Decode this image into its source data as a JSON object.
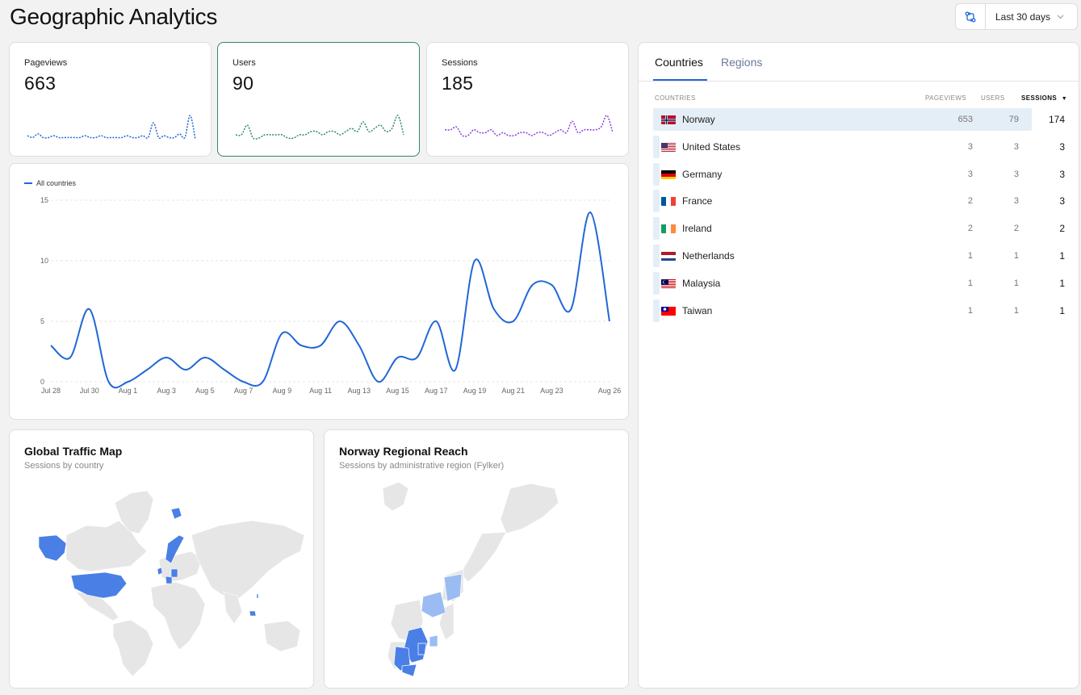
{
  "header": {
    "title": "Geographic Analytics",
    "date_range": "Last 30 days"
  },
  "metrics": [
    {
      "label": "Pageviews",
      "value": "663",
      "color": "#2167d6"
    },
    {
      "label": "Users",
      "value": "90",
      "color": "#2e8a60"
    },
    {
      "label": "Sessions",
      "value": "185",
      "color": "#8b3fe0"
    }
  ],
  "chart_data": {
    "type": "line",
    "legend": "All countries",
    "legend_position": "top-left",
    "grid": true,
    "x_ticks": [
      "Jul 28",
      "Jul 30",
      "Aug 1",
      "Aug 3",
      "Aug 5",
      "Aug 7",
      "Aug 9",
      "Aug 11",
      "Aug 13",
      "Aug 15",
      "Aug 17",
      "Aug 19",
      "Aug 21",
      "Aug 23",
      "Aug 26"
    ],
    "y_ticks": [
      "0",
      "5",
      "10",
      "15"
    ],
    "ylim": [
      0,
      15
    ],
    "x": [
      "Jul 28",
      "Jul 29",
      "Jul 30",
      "Jul 31",
      "Aug 1",
      "Aug 2",
      "Aug 3",
      "Aug 4",
      "Aug 5",
      "Aug 6",
      "Aug 7",
      "Aug 8",
      "Aug 9",
      "Aug 10",
      "Aug 11",
      "Aug 12",
      "Aug 13",
      "Aug 14",
      "Aug 15",
      "Aug 16",
      "Aug 17",
      "Aug 18",
      "Aug 19",
      "Aug 20",
      "Aug 21",
      "Aug 22",
      "Aug 23",
      "Aug 24",
      "Aug 25",
      "Aug 26"
    ],
    "series": [
      {
        "name": "All countries",
        "color": "#2167d6",
        "values": [
          3,
          2,
          6,
          0,
          0,
          1,
          2,
          1,
          2,
          1,
          0,
          0,
          4,
          3,
          3,
          5,
          3,
          0,
          2,
          2,
          5,
          1,
          10,
          6,
          5,
          8,
          8,
          6,
          14,
          5
        ]
      }
    ]
  },
  "maps": {
    "global": {
      "title": "Global Traffic Map",
      "subtitle": "Sessions by country"
    },
    "norway": {
      "title": "Norway Regional Reach",
      "subtitle": "Sessions by administrative region (Fylker)"
    }
  },
  "table": {
    "tabs": [
      "Countries",
      "Regions"
    ],
    "columns": [
      "COUNTRIES",
      "PAGEVIEWS",
      "USERS",
      "SESSIONS"
    ],
    "rows": [
      {
        "country": "Norway",
        "pageviews": "653",
        "users": "79",
        "sessions": "174",
        "flag": "no"
      },
      {
        "country": "United States",
        "pageviews": "3",
        "users": "3",
        "sessions": "3",
        "flag": "us"
      },
      {
        "country": "Germany",
        "pageviews": "3",
        "users": "3",
        "sessions": "3",
        "flag": "de"
      },
      {
        "country": "France",
        "pageviews": "2",
        "users": "3",
        "sessions": "3",
        "flag": "fr"
      },
      {
        "country": "Ireland",
        "pageviews": "2",
        "users": "2",
        "sessions": "2",
        "flag": "ie"
      },
      {
        "country": "Netherlands",
        "pageviews": "1",
        "users": "1",
        "sessions": "1",
        "flag": "nl"
      },
      {
        "country": "Malaysia",
        "pageviews": "1",
        "users": "1",
        "sessions": "1",
        "flag": "my"
      },
      {
        "country": "Taiwan",
        "pageviews": "1",
        "users": "1",
        "sessions": "1",
        "flag": "tw"
      }
    ]
  },
  "sparklines": {
    "pageviews": [
      3,
      2,
      4,
      2,
      2,
      3,
      2,
      2,
      2,
      2,
      2,
      3,
      2,
      2,
      3,
      2,
      2,
      2,
      2,
      3,
      2,
      2,
      3,
      2,
      10,
      2,
      3,
      2,
      2,
      4,
      2,
      14,
      1
    ],
    "users": [
      2,
      2,
      5,
      1,
      1,
      2,
      2,
      2,
      2,
      1,
      1,
      2,
      2,
      3,
      3,
      2,
      3,
      3,
      2,
      3,
      4,
      3,
      6,
      3,
      4,
      5,
      3,
      4,
      8,
      2
    ],
    "sessions": [
      4,
      4,
      5,
      2,
      2,
      4,
      3,
      3,
      4,
      2,
      3,
      2,
      2,
      3,
      3,
      2,
      3,
      3,
      2,
      3,
      4,
      3,
      7,
      3,
      4,
      4,
      4,
      5,
      9,
      3
    ]
  }
}
